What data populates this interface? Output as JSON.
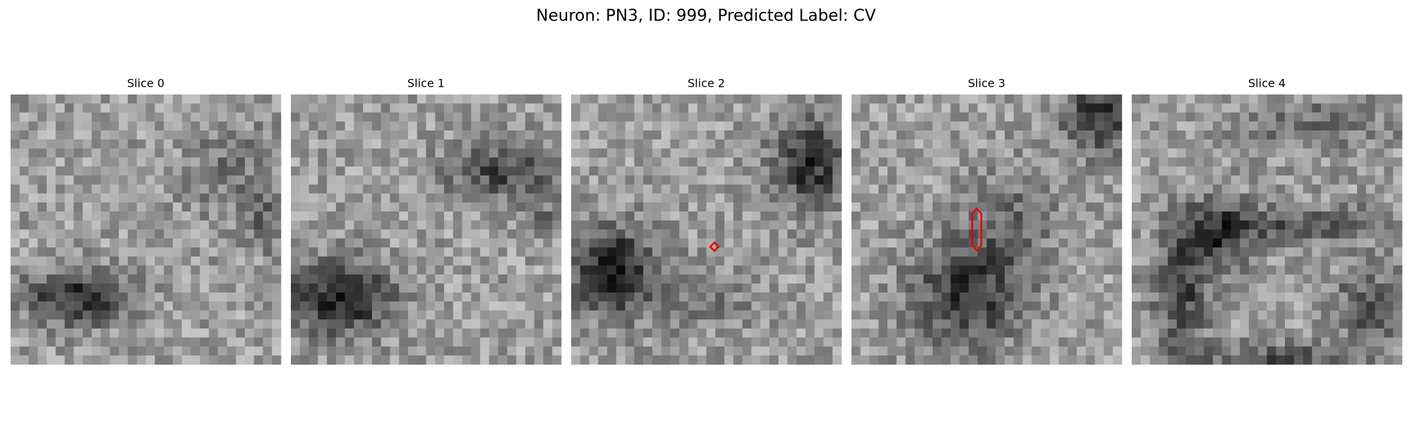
{
  "header": {
    "title": "Neuron: PN3, ID: 999, Predicted Label: CV"
  },
  "panels": [
    {
      "title": "Slice 0"
    },
    {
      "title": "Slice 1"
    },
    {
      "title": "Slice 2"
    },
    {
      "title": "Slice 3"
    },
    {
      "title": "Slice 4"
    }
  ]
}
